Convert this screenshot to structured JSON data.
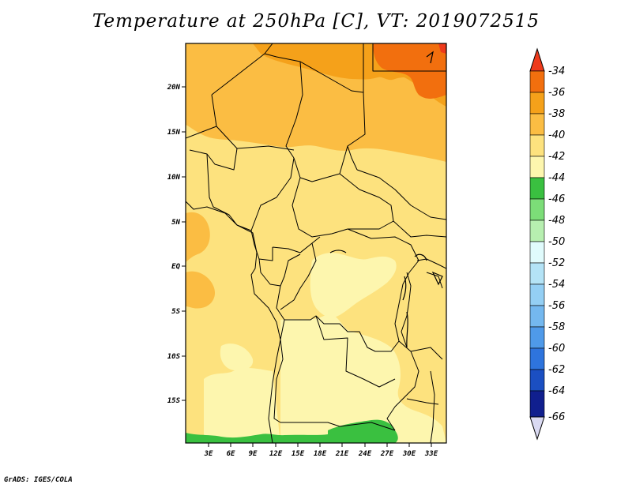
{
  "title": "Temperature at 250hPa [C], VT: 2019072515",
  "credit": "GrADS: IGES/COLA",
  "map": {
    "region": "Central Africa",
    "lat_ticks": [
      "20N",
      "15N",
      "10N",
      "5N",
      "EQ",
      "5S",
      "10S",
      "15S"
    ],
    "lon_ticks": [
      "3E",
      "6E",
      "9E",
      "12E",
      "15E",
      "18E",
      "21E",
      "24E",
      "27E",
      "30E",
      "33E"
    ]
  },
  "colorbar": {
    "labels": [
      "-34",
      "-36",
      "-38",
      "-40",
      "-42",
      "-44",
      "-46",
      "-48",
      "-50",
      "-52",
      "-54",
      "-56",
      "-58",
      "-60",
      "-62",
      "-64",
      "-66"
    ],
    "colors": {
      "gt_-34": "#ee3a1b",
      "-36_-34": "#f26f0e",
      "-38_-36": "#f5a11a",
      "-40_-38": "#fbbd43",
      "-42_-40": "#fde27e",
      "-44_-42": "#fdf6ae",
      "-46_-44": "#3ac040",
      "-48_-46": "#7cdd78",
      "-50_-48": "#b7efb0",
      "-52_-50": "#e0fbfc",
      "-54_-52": "#b4e3f6",
      "-56_-54": "#94cff4",
      "-58_-56": "#74b8ef",
      "-60_-58": "#4f9ae9",
      "-62_-60": "#2e74dd",
      "-64_-62": "#1b4fc2",
      "-66_-64": "#101f8e",
      "lt_-66": "#dadaf2"
    }
  }
}
